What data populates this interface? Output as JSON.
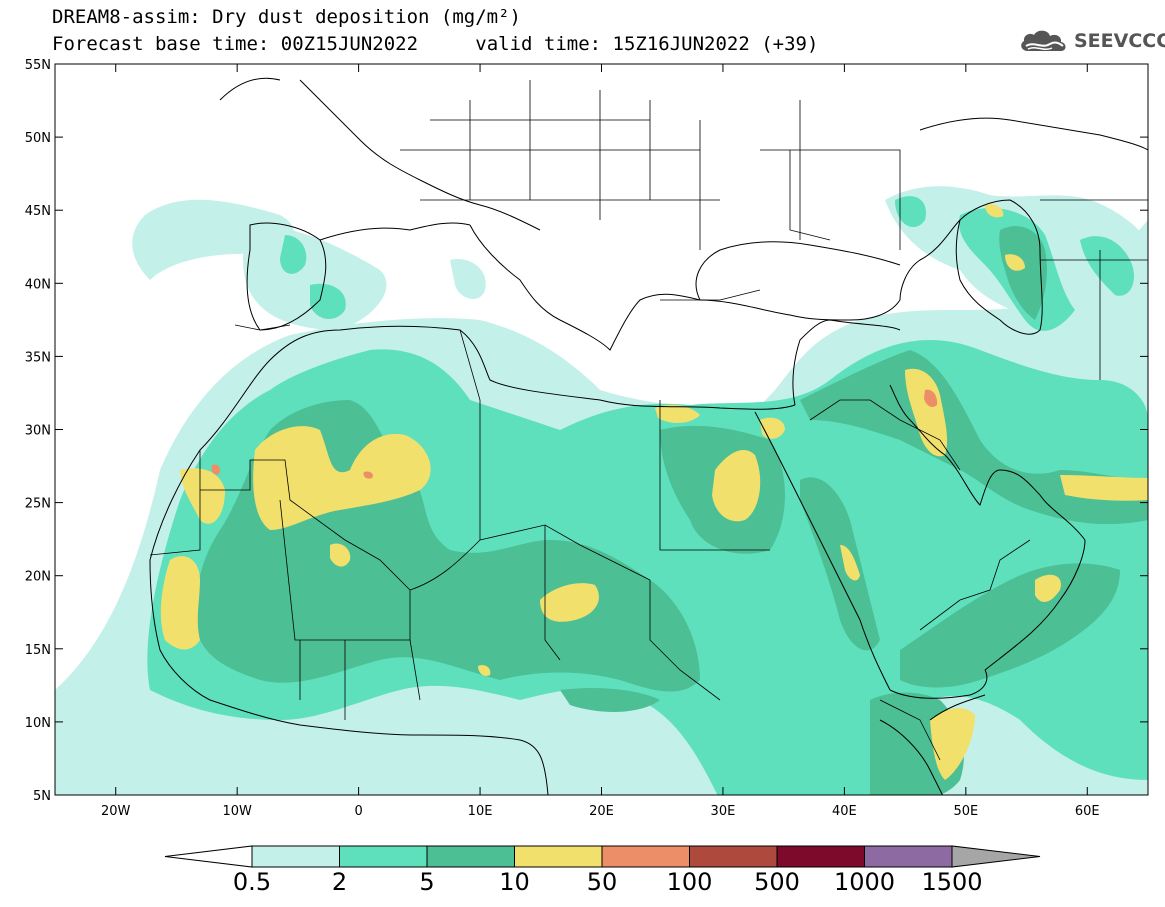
{
  "title": {
    "line1": "DREAM8-assim: Dry dust deposition (mg/m²)",
    "base_time_label": "Forecast base time: 00Z15JUN2022",
    "valid_time_label": "valid time: 15Z16JUN2022 (+39)"
  },
  "logo": {
    "text": "SEEVCCC",
    "icon": "cloud-icon"
  },
  "map": {
    "lon_range": [
      -25,
      65
    ],
    "lat_range": [
      5,
      55
    ],
    "x_ticks": [
      "20W",
      "10W",
      "0",
      "10E",
      "20E",
      "30E",
      "40E",
      "50E",
      "60E"
    ],
    "y_ticks": [
      "55N",
      "50N",
      "45N",
      "40N",
      "35N",
      "30N",
      "25N",
      "20N",
      "15N",
      "10N",
      "5N"
    ]
  },
  "colorbar": {
    "labels": [
      "0.5",
      "2",
      "5",
      "10",
      "50",
      "100",
      "500",
      "1000",
      "1500"
    ],
    "colors": [
      "#c4f0ea",
      "#5fe0bd",
      "#4cbf95",
      "#f2e06c",
      "#ec8f68",
      "#ad4a3d",
      "#7d0a2a",
      "#8e6aa3"
    ],
    "under_color": "#ffffff",
    "over_color": "#a6a6a6"
  }
}
